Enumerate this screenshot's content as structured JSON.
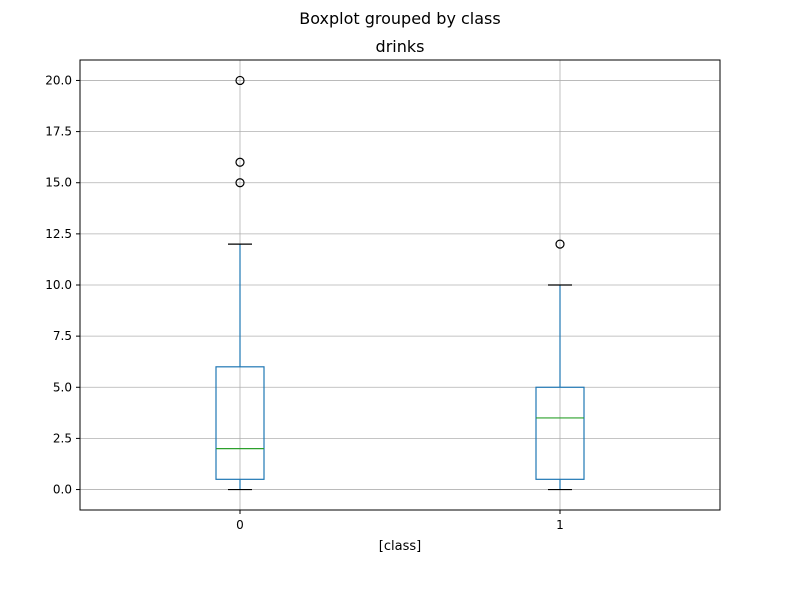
{
  "chart_data": {
    "type": "box",
    "suptitle": "Boxplot grouped by class",
    "title": "drinks",
    "xlabel": "[class]",
    "ylabel": "",
    "categories": [
      "0",
      "1"
    ],
    "ylim": [
      -1.0,
      21.0
    ],
    "yticks": [
      0.0,
      2.5,
      5.0,
      7.5,
      10.0,
      12.5,
      15.0,
      17.5,
      20.0
    ],
    "ytick_labels": [
      "0.0",
      "2.5",
      "5.0",
      "7.5",
      "10.0",
      "12.5",
      "15.0",
      "17.5",
      "20.0"
    ],
    "grid": true,
    "boxes": [
      {
        "category": "0",
        "whisker_low": 0.0,
        "q1": 0.5,
        "median": 2.0,
        "q3": 6.0,
        "whisker_high": 12.0,
        "outliers": [
          15.0,
          16.0,
          20.0
        ]
      },
      {
        "category": "1",
        "whisker_low": 0.0,
        "q1": 0.5,
        "median": 3.5,
        "q3": 5.0,
        "whisker_high": 10.0,
        "outliers": [
          12.0
        ]
      }
    ],
    "colors": {
      "box": "#1f77b4",
      "median": "#2ca02c",
      "cap": "#000000",
      "grid": "#b0b0b0"
    }
  }
}
